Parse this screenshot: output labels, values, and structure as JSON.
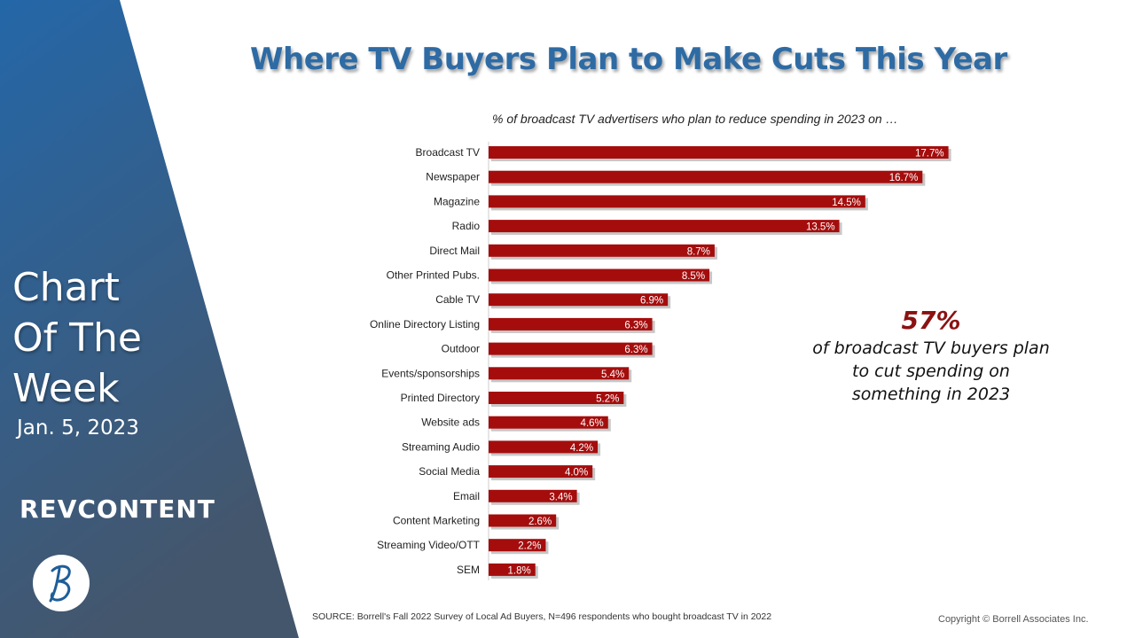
{
  "sidebar": {
    "title_lines": [
      "Chart",
      "Of The",
      "Week"
    ],
    "date": "Jan. 5, 2023",
    "brand_logo": "REVCONTENT",
    "colors": {
      "top": "#2467a8",
      "bottom": "#44566c"
    }
  },
  "title": "Where TV Buyers Plan to Make Cuts This Year",
  "subtitle": "% of broadcast TV advertisers who plan to reduce spending in 2023 on …",
  "callout": {
    "value": "57%",
    "text": "of broadcast TV buyers plan to cut spending on something in 2023"
  },
  "source": "SOURCE: Borrell's Fall 2022 Survey of Local Ad Buyers, N=496 respondents who bought broadcast TV in 2022",
  "copyright": "Copyright © Borrell Associates Inc.",
  "chart_data": {
    "type": "bar",
    "orientation": "horizontal",
    "categories": [
      "Broadcast TV",
      "Newspaper",
      "Magazine",
      "Radio",
      "Direct Mail",
      "Other Printed Pubs.",
      "Cable TV",
      "Online Directory Listing",
      "Outdoor",
      "Events/sponsorships",
      "Printed Directory",
      "Website ads",
      "Streaming Audio",
      "Social Media",
      "Email",
      "Content Marketing",
      "Streaming Video/OTT",
      "SEM"
    ],
    "values": [
      17.7,
      16.7,
      14.5,
      13.5,
      8.7,
      8.5,
      6.9,
      6.3,
      6.3,
      5.4,
      5.2,
      4.6,
      4.2,
      4.0,
      3.4,
      2.6,
      2.2,
      1.8
    ],
    "labels": [
      "17.7%",
      "16.7%",
      "14.5%",
      "13.5%",
      "8.7%",
      "8.5%",
      "6.9%",
      "6.3%",
      "6.3%",
      "5.4%",
      "5.2%",
      "4.6%",
      "4.2%",
      "4.0%",
      "3.4%",
      "2.6%",
      "2.2%",
      "1.8%"
    ],
    "unit": "%",
    "bar_color": "#a50d0d",
    "grid": false,
    "legend": "none"
  }
}
